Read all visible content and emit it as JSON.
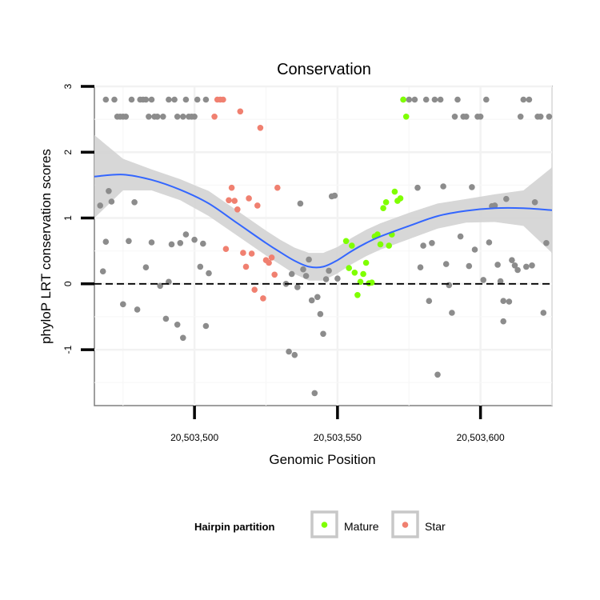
{
  "chart_data": {
    "type": "scatter",
    "title": "Conservation",
    "xlabel": "Genomic Position",
    "ylabel": "phyloP LRT conservation scores",
    "xlim": [
      20503465,
      20503625
    ],
    "ylim": [
      -1.85,
      3.0
    ],
    "xticks": [
      {
        "value": 20503500,
        "label": "20,503,500"
      },
      {
        "value": 20503550,
        "label": "20,503,550"
      },
      {
        "value": 20503600,
        "label": "20,503,600"
      }
    ],
    "yticks": [
      {
        "value": -1,
        "label": "-1"
      },
      {
        "value": 0,
        "label": "0"
      },
      {
        "value": 1,
        "label": "1"
      },
      {
        "value": 2,
        "label": "2"
      },
      {
        "value": 3,
        "label": "3"
      }
    ],
    "grid": true,
    "reference_line": {
      "y": 0,
      "style": "dashed"
    },
    "legend": {
      "title": "Hairpin partition",
      "placement": "bottom",
      "entries": [
        {
          "label": "Mature",
          "color": "#7fff00"
        },
        {
          "label": "Star",
          "color": "#f08070"
        }
      ]
    },
    "colors": {
      "other": "#8c8c8c",
      "Mature": "#7fff00",
      "Star": "#f08070",
      "smooth": "#3366ff",
      "ribbon": "#d3d3d3"
    },
    "series": [
      {
        "group": "other",
        "points": [
          [
            20503467,
            1.19
          ],
          [
            20503468,
            0.19
          ],
          [
            20503469,
            2.8
          ],
          [
            20503469,
            0.64
          ],
          [
            20503470,
            1.41
          ],
          [
            20503471,
            1.25
          ],
          [
            20503472,
            2.8
          ],
          [
            20503473,
            2.54
          ],
          [
            20503474,
            2.54
          ],
          [
            20503475,
            -0.31
          ],
          [
            20503475,
            2.54
          ],
          [
            20503476,
            2.54
          ],
          [
            20503477,
            0.65
          ],
          [
            20503478,
            2.8
          ],
          [
            20503479,
            1.24
          ],
          [
            20503480,
            -0.39
          ],
          [
            20503481,
            2.8
          ],
          [
            20503482,
            2.8
          ],
          [
            20503483,
            0.25
          ],
          [
            20503483,
            2.8
          ],
          [
            20503484,
            2.54
          ],
          [
            20503485,
            0.63
          ],
          [
            20503485,
            2.8
          ],
          [
            20503486,
            2.54
          ],
          [
            20503487,
            2.54
          ],
          [
            20503488,
            -0.03
          ],
          [
            20503489,
            2.54
          ],
          [
            20503490,
            -0.53
          ],
          [
            20503491,
            0.03
          ],
          [
            20503491,
            2.8
          ],
          [
            20503492,
            0.6
          ],
          [
            20503493,
            2.8
          ],
          [
            20503494,
            2.54
          ],
          [
            20503494,
            -0.62
          ],
          [
            20503495,
            0.62
          ],
          [
            20503496,
            2.54
          ],
          [
            20503496,
            -0.82
          ],
          [
            20503497,
            0.75
          ],
          [
            20503497,
            2.8
          ],
          [
            20503498,
            2.54
          ],
          [
            20503499,
            2.54
          ],
          [
            20503500,
            2.54
          ],
          [
            20503500,
            0.67
          ],
          [
            20503501,
            2.8
          ],
          [
            20503502,
            0.26
          ],
          [
            20503503,
            0.61
          ],
          [
            20503504,
            2.8
          ],
          [
            20503504,
            -0.64
          ],
          [
            20503505,
            0.16
          ],
          [
            20503532,
            0.0
          ],
          [
            20503533,
            -1.03
          ],
          [
            20503534,
            0.15
          ],
          [
            20503535,
            -1.08
          ],
          [
            20503536,
            -0.05
          ],
          [
            20503537,
            1.22
          ],
          [
            20503538,
            0.22
          ],
          [
            20503539,
            0.12
          ],
          [
            20503540,
            0.37
          ],
          [
            20503541,
            -0.25
          ],
          [
            20503542,
            -1.66
          ],
          [
            20503543,
            -0.2
          ],
          [
            20503544,
            -0.46
          ],
          [
            20503545,
            -0.76
          ],
          [
            20503546,
            0.07
          ],
          [
            20503547,
            0.2
          ],
          [
            20503548,
            1.33
          ],
          [
            20503549,
            1.34
          ],
          [
            20503550,
            0.08
          ],
          [
            20503573,
            2.8
          ],
          [
            20503575,
            2.8
          ],
          [
            20503577,
            2.8
          ],
          [
            20503578,
            1.46
          ],
          [
            20503579,
            0.25
          ],
          [
            20503580,
            0.58
          ],
          [
            20503581,
            2.8
          ],
          [
            20503582,
            -0.26
          ],
          [
            20503583,
            0.62
          ],
          [
            20503584,
            2.8
          ],
          [
            20503585,
            -1.38
          ],
          [
            20503586,
            2.8
          ],
          [
            20503587,
            1.48
          ],
          [
            20503588,
            0.3
          ],
          [
            20503589,
            -0.02
          ],
          [
            20503590,
            -0.44
          ],
          [
            20503591,
            2.54
          ],
          [
            20503592,
            2.8
          ],
          [
            20503593,
            0.72
          ],
          [
            20503594,
            2.54
          ],
          [
            20503595,
            2.54
          ],
          [
            20503596,
            0.27
          ],
          [
            20503597,
            1.47
          ],
          [
            20503598,
            0.52
          ],
          [
            20503599,
            2.54
          ],
          [
            20503600,
            2.54
          ],
          [
            20503601,
            0.06
          ],
          [
            20503602,
            2.8
          ],
          [
            20503603,
            0.63
          ],
          [
            20503604,
            1.18
          ],
          [
            20503605,
            1.19
          ],
          [
            20503606,
            0.29
          ],
          [
            20503607,
            0.04
          ],
          [
            20503608,
            -0.26
          ],
          [
            20503609,
            1.29
          ],
          [
            20503610,
            -0.27
          ],
          [
            20503611,
            0.36
          ],
          [
            20503612,
            0.28
          ],
          [
            20503613,
            0.21
          ],
          [
            20503614,
            2.54
          ],
          [
            20503615,
            2.8
          ],
          [
            20503616,
            0.26
          ],
          [
            20503617,
            2.8
          ],
          [
            20503618,
            0.28
          ],
          [
            20503619,
            1.24
          ],
          [
            20503620,
            2.54
          ],
          [
            20503621,
            2.54
          ],
          [
            20503622,
            -0.44
          ],
          [
            20503623,
            0.62
          ],
          [
            20503624,
            2.54
          ],
          [
            20503608,
            -0.57
          ]
        ]
      },
      {
        "group": "Star",
        "points": [
          [
            20503507,
            2.54
          ],
          [
            20503508,
            2.8
          ],
          [
            20503509,
            2.8
          ],
          [
            20503510,
            2.8
          ],
          [
            20503511,
            0.53
          ],
          [
            20503512,
            1.27
          ],
          [
            20503513,
            1.46
          ],
          [
            20503514,
            1.26
          ],
          [
            20503515,
            1.13
          ],
          [
            20503516,
            2.62
          ],
          [
            20503517,
            0.47
          ],
          [
            20503518,
            0.26
          ],
          [
            20503519,
            1.3
          ],
          [
            20503520,
            0.46
          ],
          [
            20503521,
            -0.09
          ],
          [
            20503522,
            1.19
          ],
          [
            20503523,
            2.37
          ],
          [
            20503524,
            -0.22
          ],
          [
            20503525,
            0.36
          ],
          [
            20503526,
            0.32
          ],
          [
            20503527,
            0.4
          ],
          [
            20503528,
            0.14
          ],
          [
            20503529,
            1.46
          ]
        ]
      },
      {
        "group": "Mature",
        "points": [
          [
            20503553,
            0.65
          ],
          [
            20503554,
            0.24
          ],
          [
            20503555,
            0.58
          ],
          [
            20503556,
            0.17
          ],
          [
            20503557,
            -0.17
          ],
          [
            20503558,
            0.03
          ],
          [
            20503559,
            0.15
          ],
          [
            20503560,
            0.32
          ],
          [
            20503561,
            0.01
          ],
          [
            20503562,
            0.02
          ],
          [
            20503563,
            0.72
          ],
          [
            20503564,
            0.75
          ],
          [
            20503565,
            0.6
          ],
          [
            20503566,
            1.15
          ],
          [
            20503567,
            1.24
          ],
          [
            20503568,
            0.58
          ],
          [
            20503569,
            0.75
          ],
          [
            20503570,
            1.4
          ],
          [
            20503571,
            1.26
          ],
          [
            20503572,
            1.3
          ],
          [
            20503573,
            2.8
          ],
          [
            20503574,
            2.54
          ]
        ]
      }
    ],
    "smooth": {
      "x": [
        20503465,
        20503475,
        20503485,
        20503495,
        20503505,
        20503515,
        20503525,
        20503530,
        20503535,
        20503540,
        20503545,
        20503550,
        20503555,
        20503560,
        20503565,
        20503575,
        20503585,
        20503595,
        20503605,
        20503615,
        20503625
      ],
      "y": [
        1.63,
        1.66,
        1.58,
        1.43,
        1.22,
        0.92,
        0.62,
        0.48,
        0.35,
        0.26,
        0.26,
        0.36,
        0.5,
        0.62,
        0.72,
        0.88,
        1.03,
        1.11,
        1.15,
        1.15,
        1.12
      ],
      "lo": [
        1.0,
        1.42,
        1.42,
        1.27,
        1.03,
        0.73,
        0.43,
        0.29,
        0.15,
        0.05,
        0.05,
        0.16,
        0.3,
        0.42,
        0.52,
        0.68,
        0.84,
        0.93,
        0.94,
        0.88,
        0.47
      ],
      "hi": [
        2.26,
        1.9,
        1.74,
        1.59,
        1.41,
        1.11,
        0.81,
        0.67,
        0.55,
        0.47,
        0.47,
        0.56,
        0.7,
        0.82,
        0.92,
        1.08,
        1.22,
        1.29,
        1.36,
        1.42,
        1.77
      ]
    }
  }
}
